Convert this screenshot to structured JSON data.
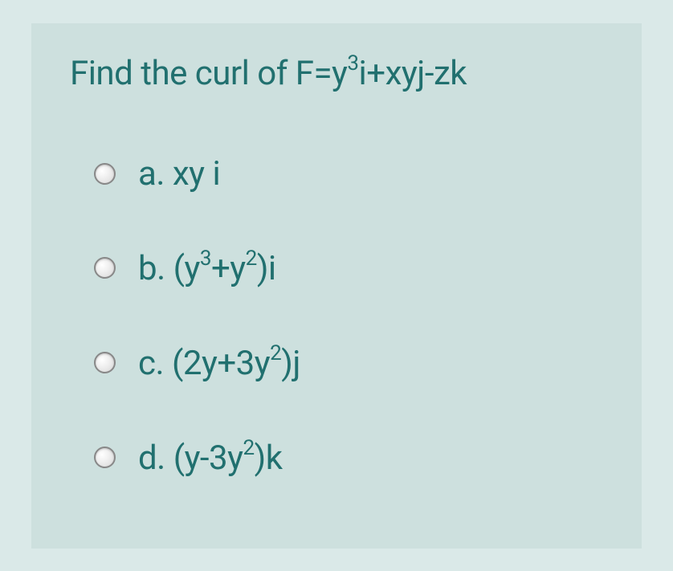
{
  "question": {
    "prefix": "Find the curl of F=y",
    "sup1": "3",
    "mid": "i+xyj-zk"
  },
  "options": {
    "a": {
      "letter": "a. ",
      "text": "xy i"
    },
    "b": {
      "letter": "b. ",
      "p1": "(y",
      "s1": "3",
      "p2": "+y",
      "s2": "2",
      "p3": ")i"
    },
    "c": {
      "letter": "c. ",
      "p1": "(2y+3y",
      "s1": "2",
      "p2": ")j"
    },
    "d": {
      "letter": "d. ",
      "p1": "(y-3y",
      "s1": "2",
      "p2": ")k"
    }
  },
  "colors": {
    "page_bg": "#dae9e8",
    "card_bg": "#cde0de",
    "text": "#21706f"
  },
  "typography": {
    "question_fontsize": 42,
    "option_fontsize": 42
  }
}
